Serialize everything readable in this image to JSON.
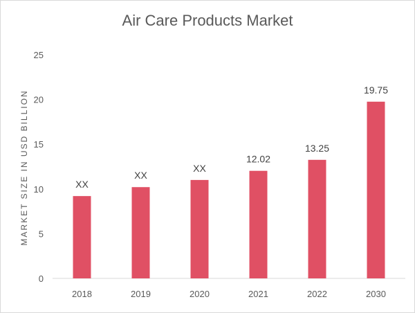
{
  "chart_data": {
    "type": "bar",
    "title": "Air Care Products Market",
    "ylabel": "MARKET SIZE IN USD BILLION",
    "xlabel": "",
    "categories": [
      "2018",
      "2019",
      "2020",
      "2021",
      "2022",
      "2030"
    ],
    "values": [
      9.2,
      10.2,
      11.0,
      12.02,
      13.25,
      19.75
    ],
    "data_labels": [
      "XX",
      "XX",
      "XX",
      "12.02",
      "13.25",
      "19.75"
    ],
    "ylim": [
      0,
      25
    ],
    "yticks": [
      "0",
      "5",
      "10",
      "15",
      "20",
      "25"
    ],
    "grid": false,
    "bar_color": "#e05064"
  }
}
